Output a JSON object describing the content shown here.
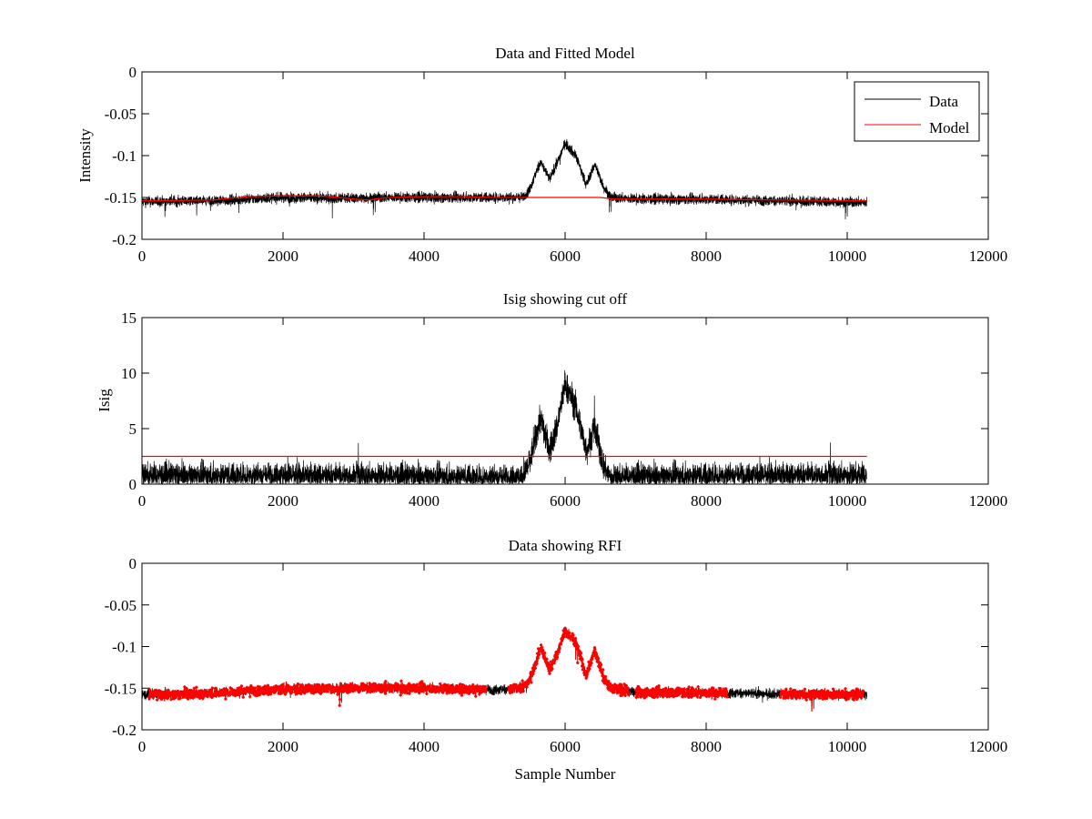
{
  "chart_data": [
    {
      "type": "line",
      "title": "Data and Fitted Model",
      "xlabel": "",
      "ylabel": "Intensity",
      "xlim": [
        0,
        12000
      ],
      "ylim": [
        -0.2,
        0
      ],
      "xticks": [
        0,
        2000,
        4000,
        6000,
        8000,
        10000,
        12000
      ],
      "xtick_labels": [
        "0",
        "2000",
        "4000",
        "6000",
        "8000",
        "10000",
        "12000"
      ],
      "yticks": [
        -0.2,
        -0.15,
        -0.1,
        -0.05,
        0
      ],
      "ytick_labels": [
        "-0.2",
        "-0.15",
        "-0.1",
        "-0.05",
        "0"
      ],
      "legend": {
        "placement": "top-right",
        "entries": [
          "Data",
          "Model"
        ]
      },
      "series": [
        {
          "name": "Data",
          "color": "#000000",
          "style": "noisy-line",
          "x": [
            0,
            1000,
            2000,
            2800,
            3500,
            4500,
            5400,
            5500,
            5650,
            5780,
            5880,
            6000,
            6150,
            6300,
            6420,
            6550,
            6650,
            7000,
            8000,
            9000,
            10280
          ],
          "y": [
            -0.155,
            -0.154,
            -0.15,
            -0.151,
            -0.15,
            -0.15,
            -0.15,
            -0.14,
            -0.107,
            -0.128,
            -0.11,
            -0.085,
            -0.1,
            -0.135,
            -0.11,
            -0.138,
            -0.15,
            -0.152,
            -0.152,
            -0.154,
            -0.156
          ],
          "noise": 0.006
        },
        {
          "name": "Model",
          "color": "#ff0000",
          "style": "line",
          "x": [
            0,
            1000,
            1500,
            2000,
            2500,
            2800,
            3000,
            3200,
            3500,
            4000,
            4500,
            5000,
            5500,
            6000,
            6500,
            6700,
            7000,
            8000,
            9000,
            10280
          ],
          "y": [
            -0.154,
            -0.153,
            -0.149,
            -0.148,
            -0.148,
            -0.15,
            -0.152,
            -0.153,
            -0.15,
            -0.149,
            -0.149,
            -0.15,
            -0.15,
            -0.15,
            -0.15,
            -0.152,
            -0.152,
            -0.152,
            -0.153,
            -0.154
          ]
        }
      ]
    },
    {
      "type": "line",
      "title": "Isig showing cut off",
      "xlabel": "",
      "ylabel": "Isig",
      "xlim": [
        0,
        12000
      ],
      "ylim": [
        0,
        15
      ],
      "xticks": [
        0,
        2000,
        4000,
        6000,
        8000,
        10000,
        12000
      ],
      "xtick_labels": [
        "0",
        "2000",
        "4000",
        "6000",
        "8000",
        "10000",
        "12000"
      ],
      "yticks": [
        0,
        5,
        10,
        15
      ],
      "ytick_labels": [
        "0",
        "5",
        "10",
        "15"
      ],
      "series": [
        {
          "name": "Isig",
          "color": "#000000",
          "style": "noisy-abs",
          "x": [
            0,
            2000,
            4000,
            5400,
            5500,
            5650,
            5780,
            5880,
            6000,
            6150,
            6300,
            6420,
            6550,
            6650,
            7000,
            8000,
            9000,
            10280
          ],
          "y": [
            0.8,
            0.8,
            0.7,
            0.6,
            2.0,
            6.0,
            3.0,
            5.0,
            9.0,
            7.0,
            3.0,
            5.0,
            1.5,
            0.6,
            0.7,
            0.8,
            0.8,
            0.8
          ],
          "noise": 1.2
        },
        {
          "name": "Cut off",
          "color": "#ff0000",
          "style": "line",
          "x": [
            0,
            10280
          ],
          "y": [
            2.5,
            2.5
          ]
        }
      ]
    },
    {
      "type": "line",
      "title": "Data showing RFI",
      "xlabel": "Sample Number",
      "ylabel": "",
      "xlim": [
        0,
        12000
      ],
      "ylim": [
        -0.2,
        0
      ],
      "xticks": [
        0,
        2000,
        4000,
        6000,
        8000,
        10000,
        12000
      ],
      "xtick_labels": [
        "0",
        "2000",
        "4000",
        "6000",
        "8000",
        "10000",
        "12000"
      ],
      "yticks": [
        -0.2,
        -0.15,
        -0.1,
        -0.05,
        0
      ],
      "ytick_labels": [
        "-0.2",
        "-0.15",
        "-0.1",
        "-0.05",
        "0"
      ],
      "series": [
        {
          "name": "Data",
          "color": "#000000",
          "style": "noisy-line",
          "x": [
            0,
            1000,
            2000,
            3000,
            4000,
            5000,
            5400,
            5500,
            5650,
            5780,
            5880,
            6000,
            6150,
            6300,
            6420,
            6550,
            6650,
            7000,
            8000,
            9000,
            10280
          ],
          "y": [
            -0.158,
            -0.156,
            -0.151,
            -0.15,
            -0.15,
            -0.152,
            -0.15,
            -0.14,
            -0.102,
            -0.128,
            -0.11,
            -0.08,
            -0.095,
            -0.135,
            -0.105,
            -0.138,
            -0.15,
            -0.155,
            -0.155,
            -0.157,
            -0.158
          ],
          "noise": 0.006
        },
        {
          "name": "RFI",
          "color": "#ff0000",
          "style": "markers",
          "segments": [
            [
              100,
              4880
            ],
            [
              5200,
              6900
            ],
            [
              7000,
              8300
            ],
            [
              9050,
              10230
            ]
          ]
        }
      ]
    }
  ]
}
